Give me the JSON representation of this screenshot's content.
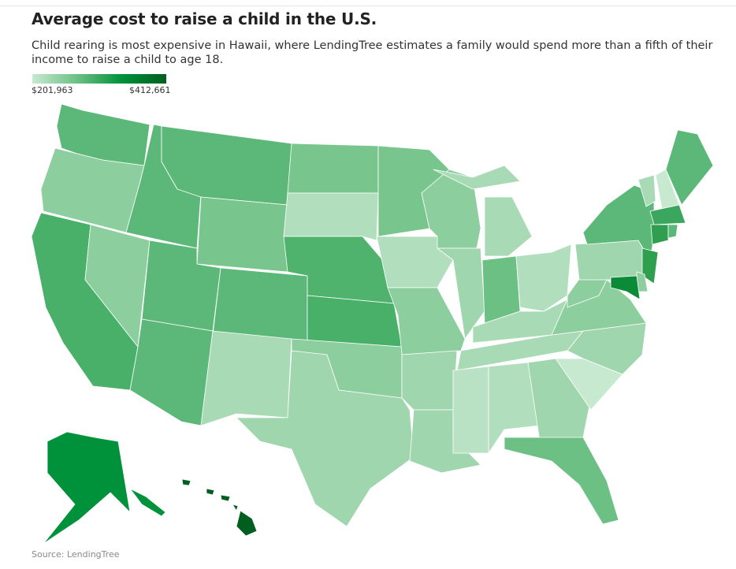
{
  "header": {
    "title": "Average cost to raise a child in the U.S.",
    "subtitle": "Child rearing is most expensive in Hawaii, where LendingTree estimates a family would spend more than a fifth of their income to raise a child to age 18."
  },
  "legend": {
    "min_label": "$201,963",
    "max_label": "$412,661",
    "colors": [
      "#c6e9d0",
      "#6cc084",
      "#00923a",
      "#005f1f"
    ]
  },
  "source": "Source: LendingTree",
  "chart_data": {
    "type": "choropleth",
    "title": "Average cost to raise a child in the U.S.",
    "range": [
      201963,
      412661
    ],
    "region_fills": {
      "WA": "#5cb878",
      "OR": "#8dce9f",
      "CA": "#48b068",
      "NV": "#8dce9f",
      "ID": "#5cb878",
      "MT": "#5cb878",
      "WY": "#78c68d",
      "UT": "#5cb878",
      "CO": "#5cb878",
      "AZ": "#5cb878",
      "NM": "#a8dab5",
      "ND": "#78c68d",
      "SD": "#b1dfbd",
      "NE": "#4fb26d",
      "KS": "#48b068",
      "OK": "#8dce9f",
      "TX": "#a0d6ae",
      "MN": "#78c68d",
      "IA": "#b1dfbd",
      "MO": "#8dce9f",
      "AR": "#a0d6ae",
      "LA": "#a0d6ae",
      "WI": "#8dce9f",
      "IL": "#a0d6ae",
      "MI": "#a8dab5",
      "IN": "#6cc084",
      "OH": "#b1dfbd",
      "KY": "#a8dab5",
      "TN": "#a8dab5",
      "MS": "#b9e2c4",
      "AL": "#b1dfbd",
      "GA": "#a0d6ae",
      "FL": "#6cc084",
      "SC": "#c6e9d0",
      "NC": "#a0d6ae",
      "VA": "#8dce9f",
      "WV": "#8dce9f",
      "PA": "#a0d6ae",
      "NY": "#5cb878",
      "VT": "#a8dab5",
      "NH": "#c6e9d0",
      "ME": "#5cb878",
      "MA": "#3aa65e",
      "CT": "#2f9e4f",
      "RI": "#5cb878",
      "NJ": "#2f9e4f",
      "DE": "#8dce9f",
      "MD": "#0b8a37",
      "AK": "#00923a",
      "HI": "#005f1f"
    }
  }
}
